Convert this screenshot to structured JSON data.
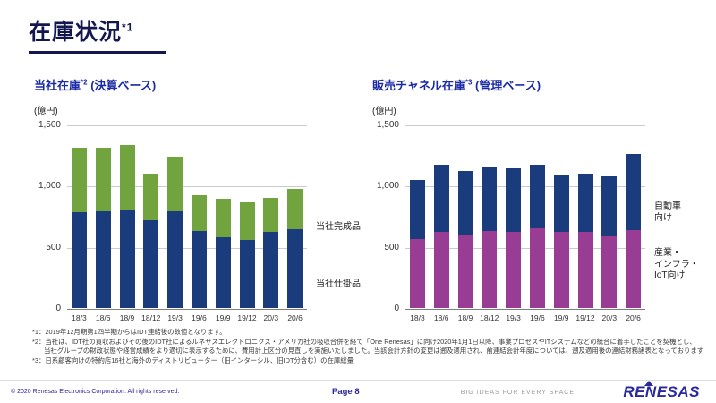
{
  "slide_title": {
    "text": "在庫状況",
    "sup": "*1"
  },
  "chart_data": [
    {
      "type": "bar",
      "stacked": true,
      "title": "当社在庫*2 (決算ベース)",
      "title_text": "当社在庫",
      "title_sup": "*2",
      "title_suffix": " (決算ベース)",
      "unit_label": "(億円)",
      "xlabel": "",
      "ylabel": "億円",
      "ylim": [
        0,
        1500
      ],
      "yticks": [
        0,
        500,
        1000,
        1500
      ],
      "grid": true,
      "legend_position": "right-annotations",
      "categories": [
        "18/3",
        "18/6",
        "18/9",
        "18/12",
        "19/3",
        "19/6",
        "19/9",
        "19/12",
        "20/3",
        "20/6"
      ],
      "series": [
        {
          "name": "当社仕掛品",
          "color": "#1b3c7c",
          "values": [
            780,
            790,
            800,
            720,
            790,
            630,
            580,
            555,
            625,
            645
          ]
        },
        {
          "name": "当社完成品",
          "color": "#71a33e",
          "values": [
            530,
            520,
            530,
            380,
            450,
            290,
            310,
            305,
            275,
            325
          ]
        }
      ],
      "annotations": [
        "当社完成品",
        "当社仕掛品"
      ]
    },
    {
      "type": "bar",
      "stacked": true,
      "title": "販売チャネル在庫*3 (管理ベース)",
      "title_text": "販売チャネル在庫",
      "title_sup": "*3",
      "title_suffix": " (管理ベース)",
      "unit_label": "(億円)",
      "xlabel": "",
      "ylabel": "億円",
      "ylim": [
        0,
        1500
      ],
      "yticks": [
        0,
        500,
        1000,
        1500
      ],
      "grid": true,
      "legend_position": "right-annotations",
      "categories": [
        "18/3",
        "18/6",
        "18/9",
        "18/12",
        "19/3",
        "19/6",
        "19/9",
        "19/12",
        "20/3",
        "20/6"
      ],
      "series": [
        {
          "name": "産業・インフラ・IoT向け",
          "color": "#993d94",
          "values": [
            560,
            620,
            600,
            630,
            620,
            650,
            620,
            620,
            590,
            640
          ]
        },
        {
          "name": "自動車向け",
          "color": "#1b3c7c",
          "values": [
            490,
            550,
            520,
            520,
            520,
            520,
            470,
            480,
            490,
            620
          ]
        }
      ],
      "annotations": [
        "自動車\n向け",
        "産業・\nインフラ・\nIoT向け"
      ]
    }
  ],
  "notes": [
    "*1：2019年12月期第1四半期からはIDT連結後の数値となります。",
    "*2：当社は、IDT社の買収およびその後のIDT社によるルネサスエレクトロニクス・アメリカ社の吸収合併を経て「One Renesas」に向け2020年1月1日以降、事業プロセスやITシステムなどの統合に着手したことを契機とし、",
    "当社グループの財政状態や経営成績をより適切に表示するために、費用計上区分の見直しを実施いたしました。当該会計方針の変更は遡及適用され、前連結会計年度については、遡及適用後の連結財務諸表となっております。",
    "*3：日系顧客向けの特約店16社と海外のディストリビューター（旧インターシル、旧IDT分含む）の在庫総量"
  ],
  "footer": {
    "copyright": "© 2020 Renesas Electronics Corporation. All rights reserved.",
    "page": "Page 8",
    "tagline": "BIG IDEAS FOR EVERY SPACE",
    "logo": "RENESAS"
  },
  "colors": {
    "bar_navy": "#1b3c7c",
    "bar_green": "#71a33e",
    "bar_purple": "#993d94",
    "title_navy": "#12174e",
    "chart_title_blue": "#1b2aa5",
    "brand_blue": "#2a289d"
  }
}
